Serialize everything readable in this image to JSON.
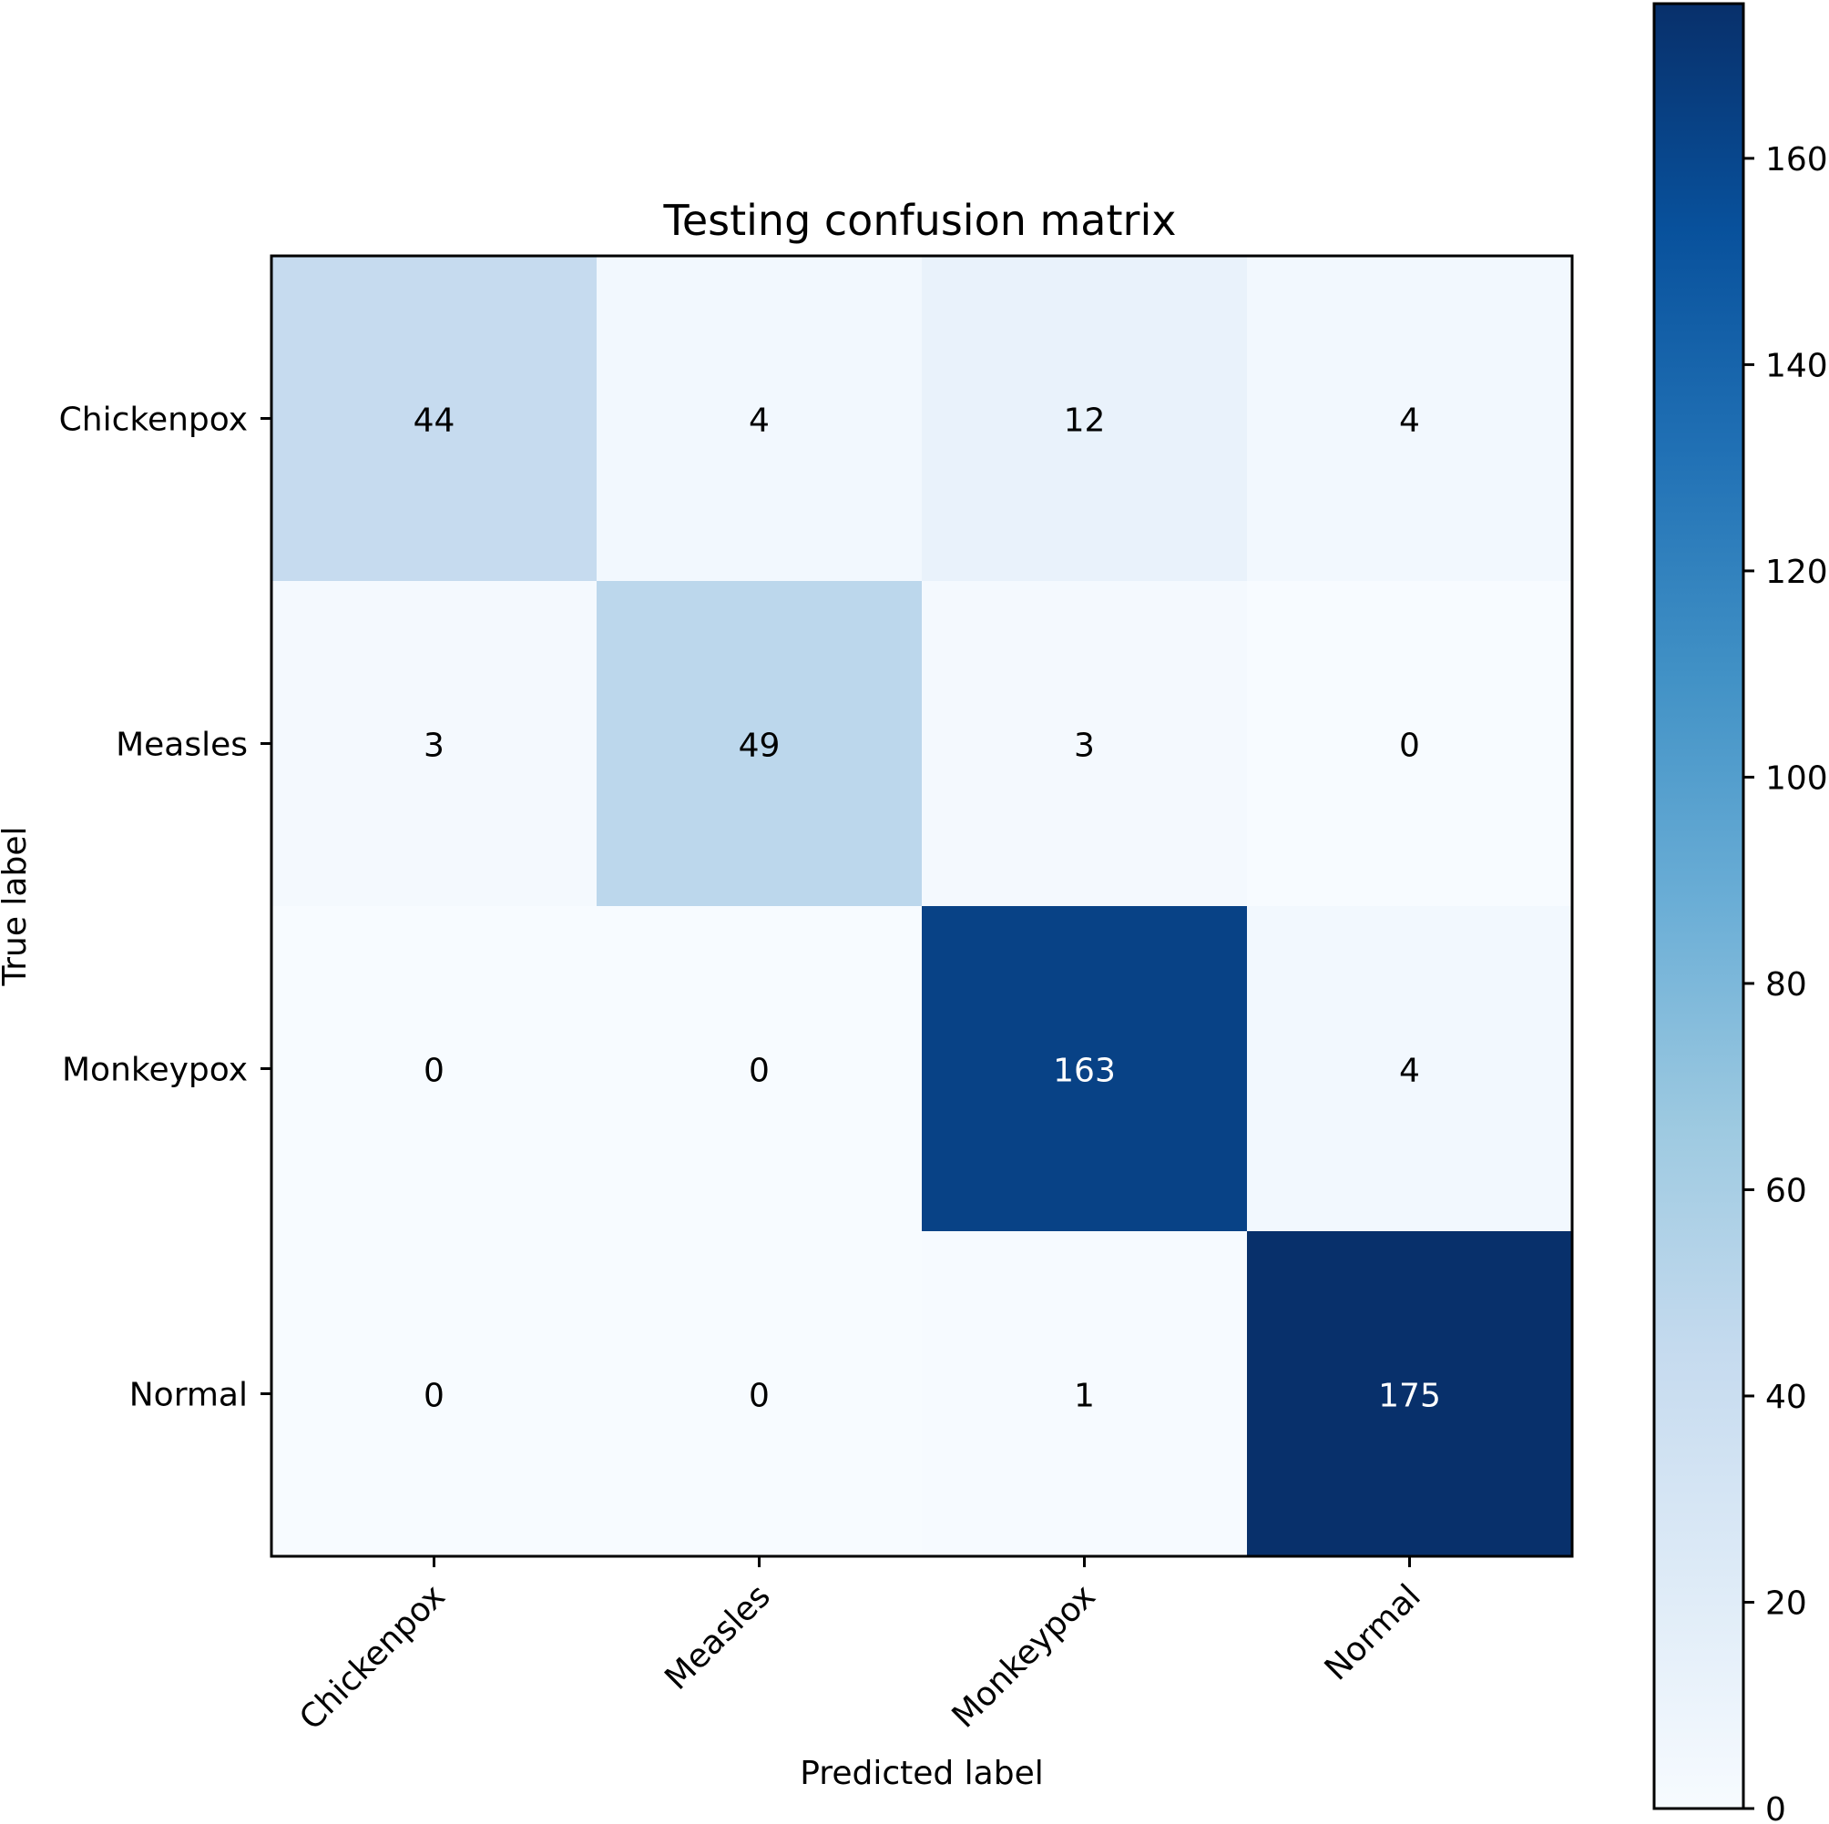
{
  "chart_data": {
    "type": "heatmap",
    "title": "Testing confusion matrix",
    "xlabel": "Predicted label",
    "ylabel": "True label",
    "x_categories": [
      "Chickenpox",
      "Measles",
      "Monkeypox",
      "Normal"
    ],
    "y_categories": [
      "Chickenpox",
      "Measles",
      "Monkeypox",
      "Normal"
    ],
    "values": [
      [
        44,
        4,
        12,
        4
      ],
      [
        3,
        49,
        3,
        0
      ],
      [
        0,
        0,
        163,
        4
      ],
      [
        0,
        0,
        1,
        175
      ]
    ],
    "colormap": "Blues",
    "colorbar": {
      "range": [
        0,
        175
      ],
      "ticks": [
        0,
        20,
        40,
        60,
        80,
        100,
        120,
        140,
        160
      ],
      "tick_labels": [
        "0",
        "20",
        "40",
        "60",
        "80",
        "100",
        "120",
        "140",
        "160"
      ]
    },
    "text_colors": {
      "light_cell": "#000000",
      "dark_cell": "#ffffff"
    }
  }
}
